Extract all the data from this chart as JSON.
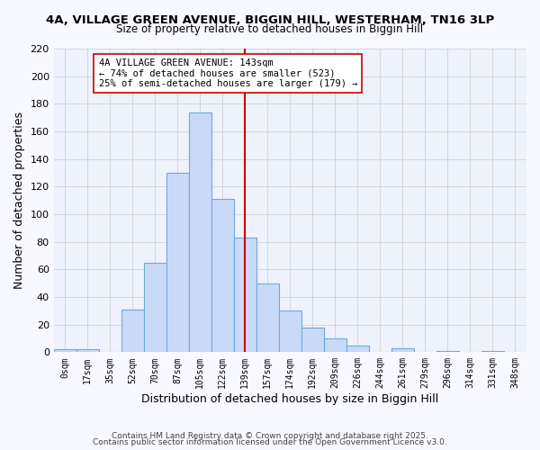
{
  "title1": "4A, VILLAGE GREEN AVENUE, BIGGIN HILL, WESTERHAM, TN16 3LP",
  "title2": "Size of property relative to detached houses in Biggin Hill",
  "xlabel": "Distribution of detached houses by size in Biggin Hill",
  "ylabel": "Number of detached properties",
  "bin_labels": [
    "0sqm",
    "17sqm",
    "35sqm",
    "52sqm",
    "70sqm",
    "87sqm",
    "105sqm",
    "122sqm",
    "139sqm",
    "157sqm",
    "174sqm",
    "192sqm",
    "209sqm",
    "226sqm",
    "244sqm",
    "261sqm",
    "279sqm",
    "296sqm",
    "314sqm",
    "331sqm",
    "348sqm"
  ],
  "bar_values": [
    2,
    2,
    0,
    31,
    65,
    130,
    174,
    111,
    83,
    50,
    30,
    18,
    10,
    5,
    0,
    3,
    0,
    1,
    0,
    1,
    0
  ],
  "bar_color": "#c9daf8",
  "bar_edge_color": "#6fa8dc",
  "vline_x": 8,
  "vline_color": "#cc0000",
  "annotation_text": "4A VILLAGE GREEN AVENUE: 143sqm\n← 74% of detached houses are smaller (523)\n25% of semi-detached houses are larger (179) →",
  "annotation_box_color": "#ffffff",
  "annotation_box_edge": "#cc0000",
  "ylim": [
    0,
    220
  ],
  "yticks": [
    0,
    20,
    40,
    60,
    80,
    100,
    120,
    140,
    160,
    180,
    200,
    220
  ],
  "footer1": "Contains HM Land Registry data © Crown copyright and database right 2025.",
  "footer2": "Contains public sector information licensed under the Open Government Licence v3.0.",
  "bg_color": "#f8f8ff",
  "grid_color": "#cccccc",
  "plot_bg": "#eef2fc"
}
